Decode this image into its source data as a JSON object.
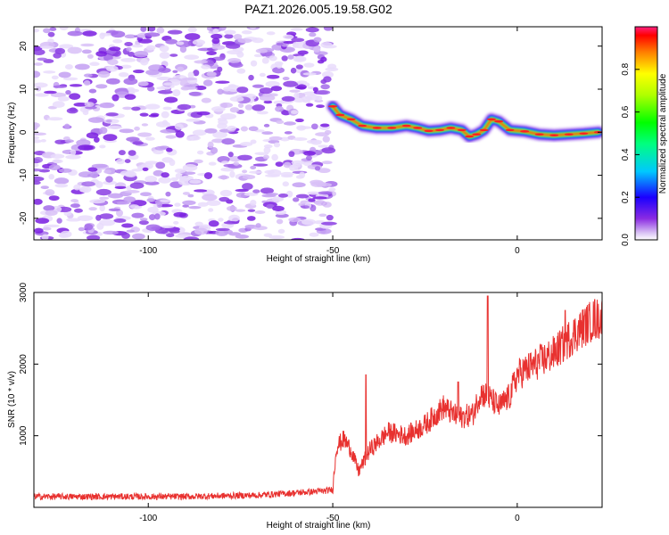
{
  "title": "PAZ1.2026.005.19.58.G02",
  "chart_data": [
    {
      "type": "heatmap",
      "name": "spectrogram",
      "xlabel": "Height of straight line (km)",
      "ylabel": "Frequency (Hz)",
      "xlim": [
        -131,
        23
      ],
      "ylim": [
        -25,
        24.5
      ],
      "xticks": [
        -100,
        -50,
        0
      ],
      "xtick_labels": [
        "-100",
        "-50",
        "0"
      ],
      "yticks": [
        20,
        10,
        0,
        -10,
        -20
      ],
      "ytick_labels": [
        "20",
        "10",
        "0",
        "-10",
        "-20"
      ],
      "noise_region_x": [
        -131,
        -50
      ],
      "ridge_points": [
        [
          -50,
          6
        ],
        [
          -48,
          4
        ],
        [
          -45,
          3
        ],
        [
          -42,
          1.5
        ],
        [
          -38,
          1
        ],
        [
          -34,
          1
        ],
        [
          -30,
          1.5
        ],
        [
          -27,
          1
        ],
        [
          -24,
          0.3
        ],
        [
          -21,
          0.5
        ],
        [
          -18,
          1
        ],
        [
          -15,
          0.5
        ],
        [
          -13,
          -1
        ],
        [
          -11,
          -0.5
        ],
        [
          -9,
          0.5
        ],
        [
          -7,
          3
        ],
        [
          -5,
          2.5
        ],
        [
          -2,
          0.5
        ],
        [
          2,
          0.2
        ],
        [
          6,
          -0.5
        ],
        [
          10,
          -0.7
        ],
        [
          14,
          -0.5
        ],
        [
          18,
          -0.3
        ],
        [
          22,
          0
        ]
      ],
      "colorbar": {
        "label": "Normalized spectral amplitude",
        "range": [
          0,
          1
        ],
        "ticks": [
          "0.0",
          "0.2",
          "0.4",
          "0.6",
          "0.8"
        ]
      }
    },
    {
      "type": "line",
      "name": "snr",
      "xlabel": "Height of straight line (km)",
      "ylabel": "SNR (10 * v/v)",
      "xlim": [
        -131,
        23
      ],
      "ylim": [
        0,
        3000
      ],
      "xticks": [
        -100,
        -50,
        0
      ],
      "xtick_labels": [
        "-100",
        "-50",
        "0"
      ],
      "yticks": [
        1000,
        2000,
        3000
      ],
      "ytick_labels": [
        "1000",
        "2000",
        "3000"
      ],
      "color": "#e8312f",
      "trend_points": [
        [
          -131,
          150
        ],
        [
          -110,
          150
        ],
        [
          -90,
          150
        ],
        [
          -70,
          170
        ],
        [
          -52,
          230
        ],
        [
          -50,
          250
        ],
        [
          -49,
          850
        ],
        [
          -47,
          950
        ],
        [
          -45,
          800
        ],
        [
          -43,
          500
        ],
        [
          -40,
          800
        ],
        [
          -35,
          1050
        ],
        [
          -30,
          1000
        ],
        [
          -25,
          1150
        ],
        [
          -20,
          1400
        ],
        [
          -16,
          1250
        ],
        [
          -12,
          1300
        ],
        [
          -10,
          1600
        ],
        [
          -8,
          1550
        ],
        [
          -5,
          1400
        ],
        [
          -2,
          1550
        ],
        [
          0,
          1850
        ],
        [
          5,
          2000
        ],
        [
          10,
          2150
        ],
        [
          15,
          2400
        ],
        [
          20,
          2600
        ],
        [
          23,
          2650
        ]
      ],
      "spikes": [
        [
          -8,
          2950
        ],
        [
          -16,
          1750
        ],
        [
          -41,
          1850
        ],
        [
          13,
          2750
        ],
        [
          21,
          2900
        ]
      ]
    }
  ]
}
